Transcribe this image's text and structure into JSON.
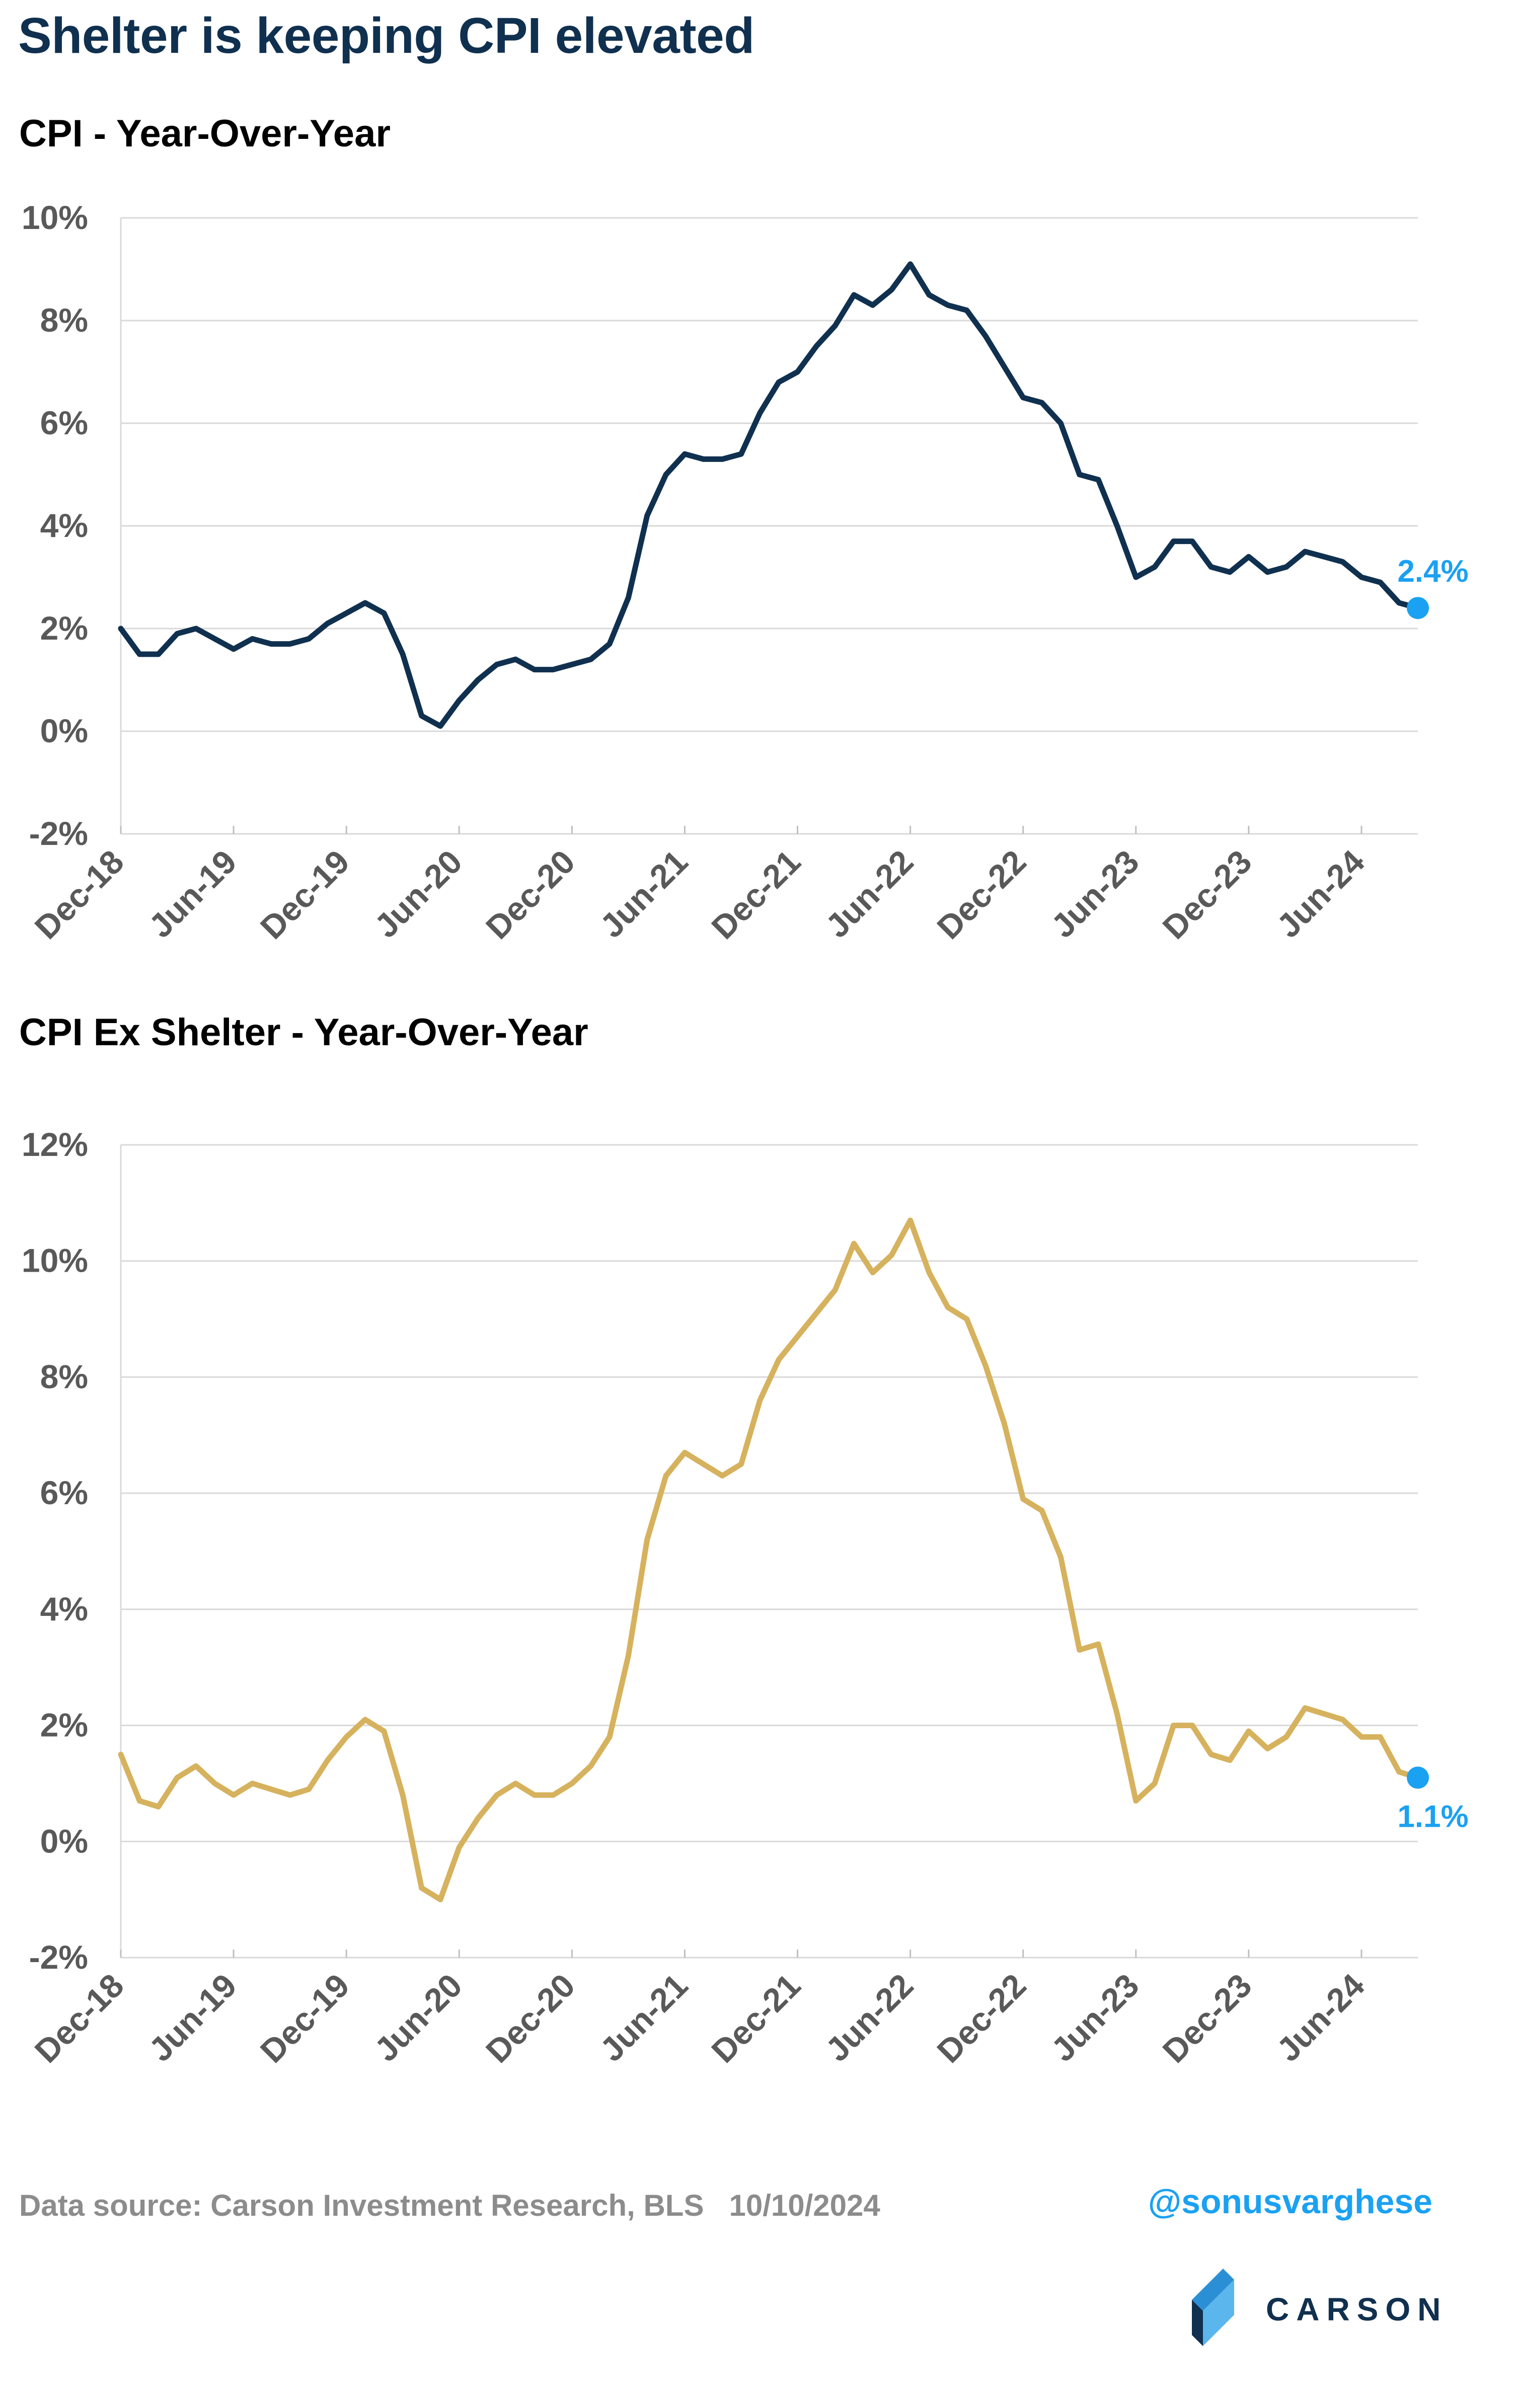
{
  "title": "Shelter is keeping CPI elevated",
  "source": "Data source: Carson Investment Research, BLS   10/10/2024",
  "handle": "@sonusvarghese",
  "logo": {
    "wordmark": "CARSON"
  },
  "colors": {
    "cpi_line": "#10304f",
    "ex_shelter_line": "#d6b25e",
    "highlight": "#1ba1f2",
    "grid": "#d9d9d9",
    "tick_text": "#595959"
  },
  "chart_data": [
    {
      "type": "line",
      "title": "CPI - Year-Over-Year",
      "ylim": [
        -2,
        10
      ],
      "yticks": [
        -2,
        0,
        2,
        4,
        6,
        8,
        10
      ],
      "ytick_labels": [
        "-2%",
        "0%",
        "2%",
        "4%",
        "6%",
        "8%",
        "10%"
      ],
      "xtick_labels": [
        "Dec-18",
        "Jun-19",
        "Dec-19",
        "Jun-20",
        "Dec-20",
        "Jun-21",
        "Dec-21",
        "Jun-22",
        "Dec-22",
        "Jun-23",
        "Dec-23",
        "Jun-24"
      ],
      "grid": true,
      "x_start": "Dec-18",
      "end_label": "2.4%",
      "series": [
        {
          "color": "#10304f",
          "values": [
            2.0,
            1.5,
            1.5,
            1.9,
            2.0,
            1.8,
            1.6,
            1.8,
            1.7,
            1.7,
            1.8,
            2.1,
            2.3,
            2.5,
            2.3,
            1.5,
            0.3,
            0.1,
            0.6,
            1.0,
            1.3,
            1.4,
            1.2,
            1.2,
            1.3,
            1.4,
            1.7,
            2.6,
            4.2,
            5.0,
            5.4,
            5.3,
            5.3,
            5.4,
            6.2,
            6.8,
            7.0,
            7.5,
            7.9,
            8.5,
            8.3,
            8.6,
            9.1,
            8.5,
            8.3,
            8.2,
            7.7,
            7.1,
            6.5,
            6.4,
            6.0,
            5.0,
            4.9,
            4.0,
            3.0,
            3.2,
            3.7,
            3.7,
            3.2,
            3.1,
            3.4,
            3.1,
            3.2,
            3.5,
            3.4,
            3.3,
            3.0,
            2.9,
            2.5,
            2.4
          ]
        }
      ]
    },
    {
      "type": "line",
      "title": "CPI Ex Shelter - Year-Over-Year",
      "ylim": [
        -2,
        12
      ],
      "yticks": [
        -2,
        0,
        2,
        4,
        6,
        8,
        10,
        12
      ],
      "ytick_labels": [
        "-2%",
        "0%",
        "2%",
        "4%",
        "6%",
        "8%",
        "10%",
        "12%"
      ],
      "xtick_labels": [
        "Dec-18",
        "Jun-19",
        "Dec-19",
        "Jun-20",
        "Dec-20",
        "Jun-21",
        "Dec-21",
        "Jun-22",
        "Dec-22",
        "Jun-23",
        "Dec-23",
        "Jun-24"
      ],
      "grid": true,
      "x_start": "Dec-18",
      "end_label": "1.1%",
      "series": [
        {
          "color": "#d6b25e",
          "values": [
            1.5,
            0.7,
            0.6,
            1.1,
            1.3,
            1.0,
            0.8,
            1.0,
            0.9,
            0.8,
            0.9,
            1.4,
            1.8,
            2.1,
            1.9,
            0.8,
            -0.8,
            -1.0,
            -0.1,
            0.4,
            0.8,
            1.0,
            0.8,
            0.8,
            1.0,
            1.3,
            1.8,
            3.2,
            5.2,
            6.3,
            6.7,
            6.5,
            6.3,
            6.5,
            7.6,
            8.3,
            8.7,
            9.1,
            9.5,
            10.3,
            9.8,
            10.1,
            10.7,
            9.8,
            9.2,
            9.0,
            8.2,
            7.2,
            5.9,
            5.7,
            4.9,
            3.3,
            3.4,
            2.2,
            0.7,
            1.0,
            2.0,
            2.0,
            1.5,
            1.4,
            1.9,
            1.6,
            1.8,
            2.3,
            2.2,
            2.1,
            1.8,
            1.8,
            1.2,
            1.1
          ]
        }
      ]
    }
  ]
}
